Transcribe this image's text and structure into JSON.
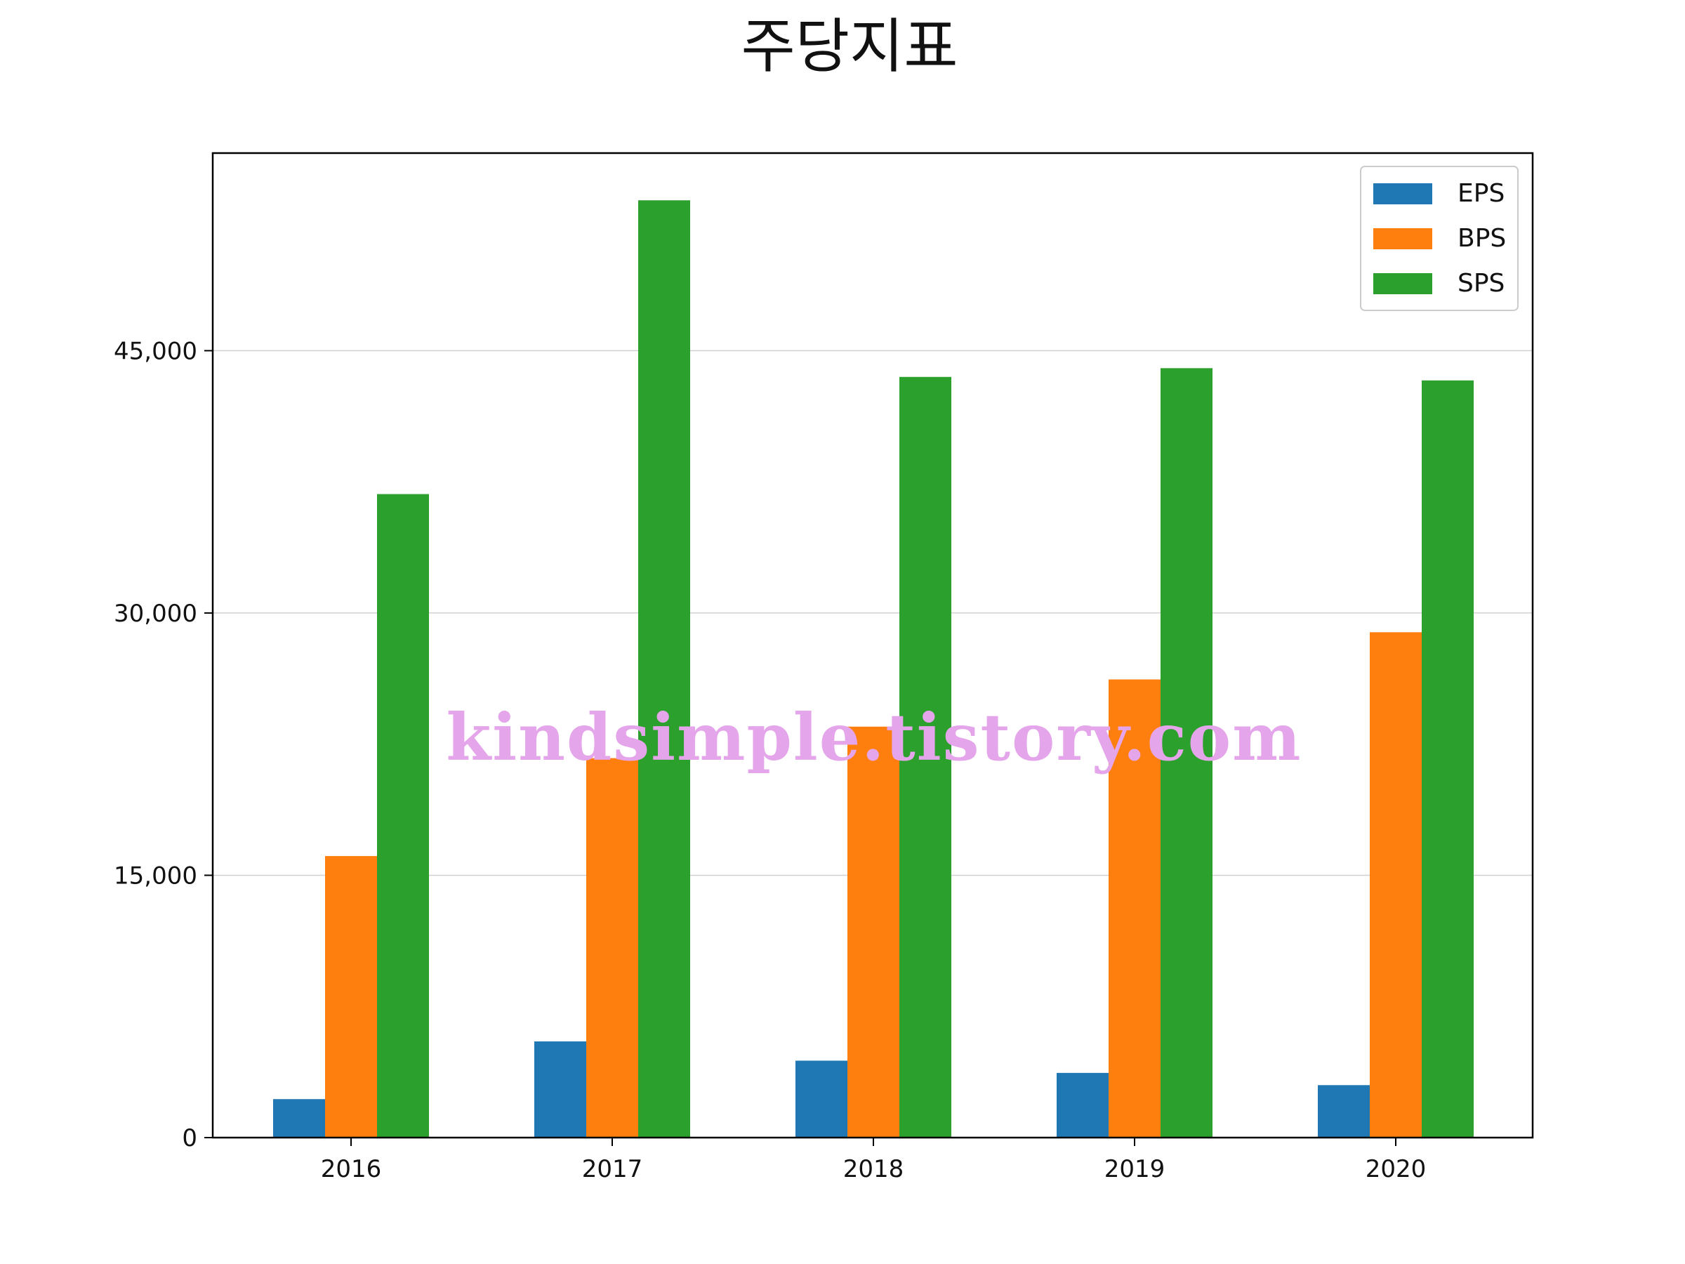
{
  "chart_data": {
    "type": "bar",
    "title": "주당지표",
    "xlabel": "",
    "ylabel": "",
    "categories": [
      "2016",
      "2017",
      "2018",
      "2019",
      "2020"
    ],
    "series": [
      {
        "name": "EPS",
        "color": "#1f77b4",
        "values": [
          2200,
          5500,
          4400,
          3700,
          3000
        ]
      },
      {
        "name": "BPS",
        "color": "#ff7f0e",
        "values": [
          16100,
          21700,
          23500,
          26200,
          28900
        ]
      },
      {
        "name": "SPS",
        "color": "#2ca02c",
        "values": [
          36800,
          53600,
          43500,
          44000,
          43300
        ]
      }
    ],
    "ylim": [
      0,
      56300
    ],
    "yticks": [
      0,
      15000,
      30000,
      45000
    ],
    "ytick_labels": [
      "0",
      "15,000",
      "30,000",
      "45,000"
    ],
    "grid": "horizontal",
    "legend": "top-right",
    "watermark": "kindsimple.tistory.com"
  }
}
